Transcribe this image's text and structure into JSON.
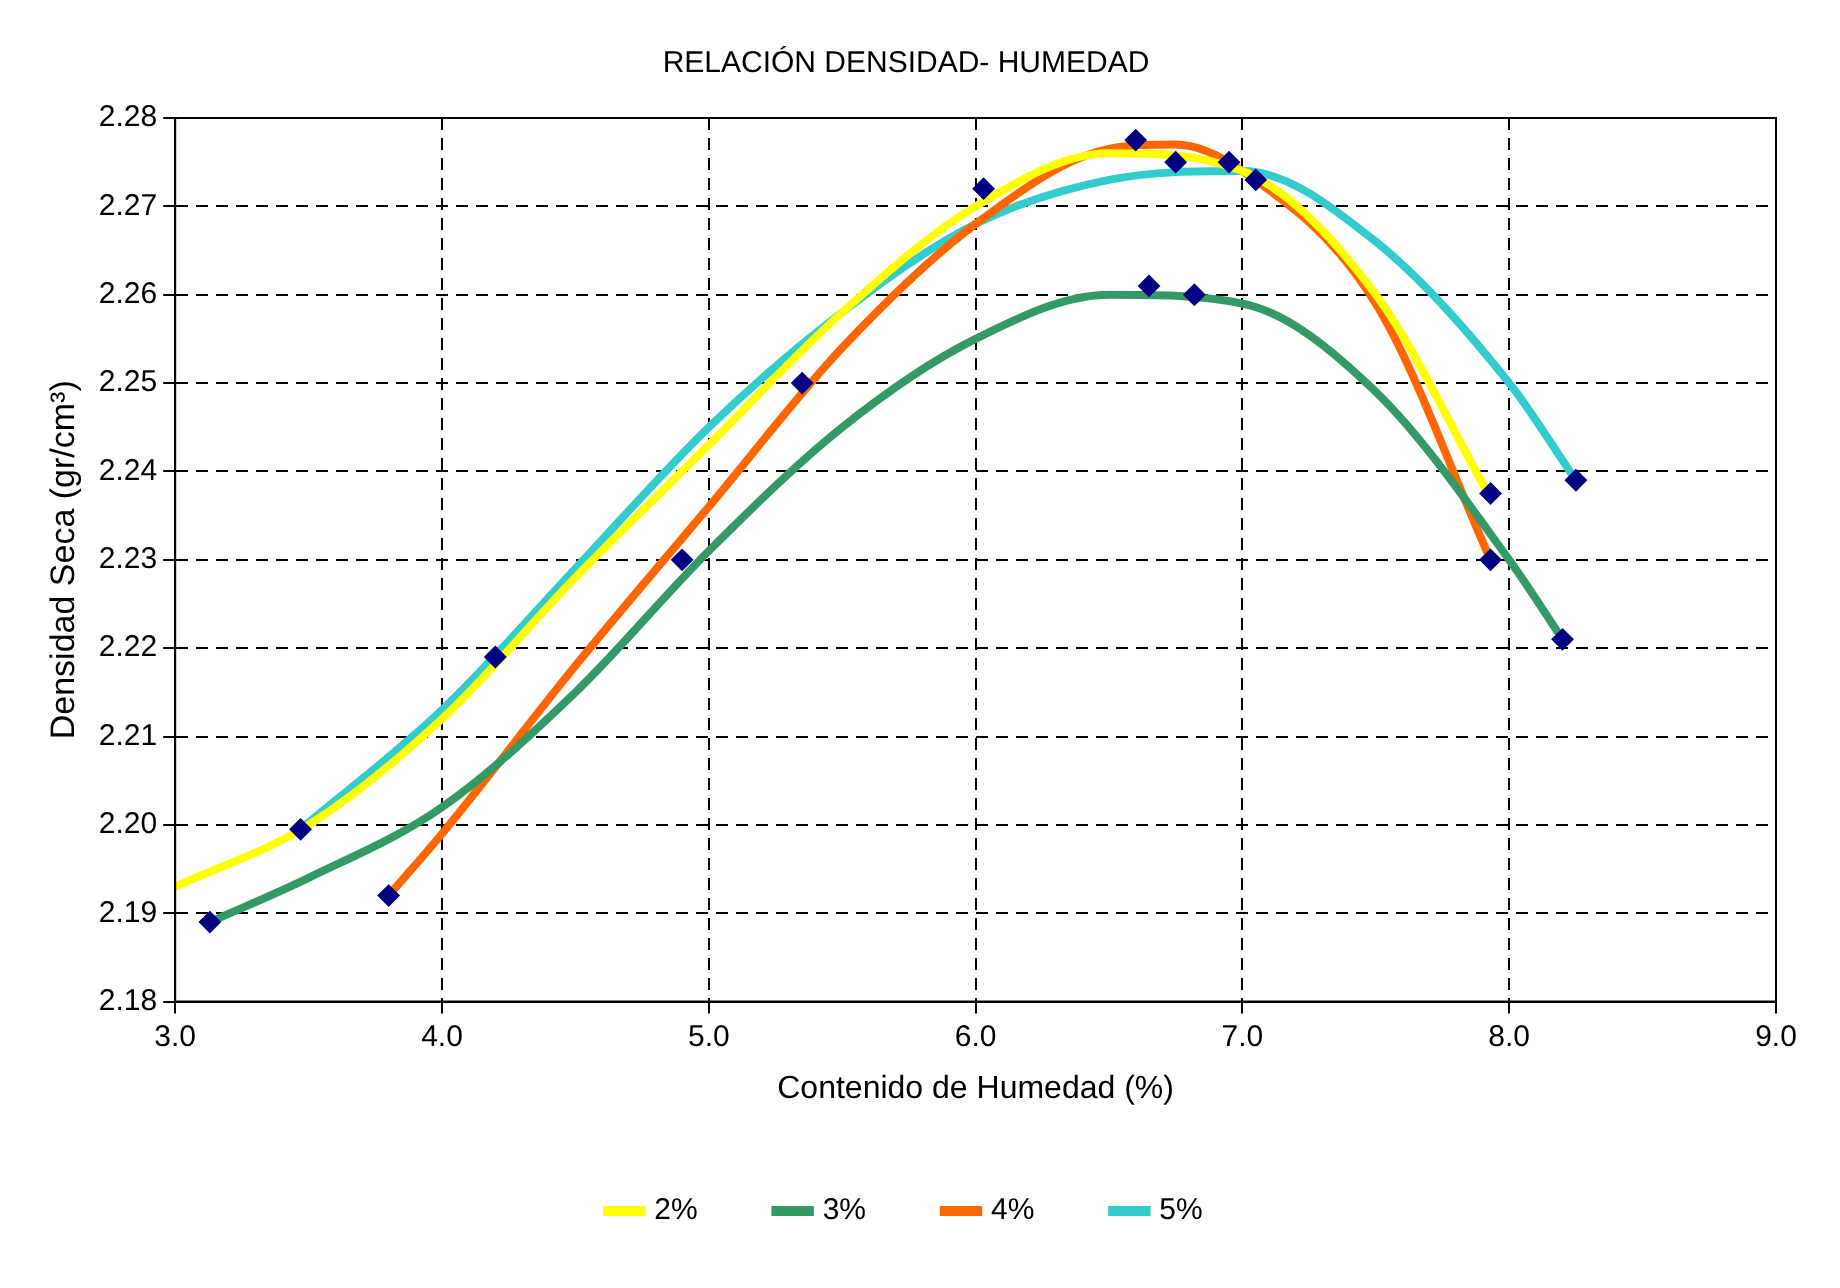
{
  "chart_data": {
    "type": "line",
    "title": "RELACIÓN DENSIDAD- HUMEDAD",
    "xlabel": "Contenido de Humedad (%)",
    "ylabel": "Densidad Seca (gr/cm³)",
    "xlim": [
      3.0,
      9.0
    ],
    "xticks": [
      {
        "value": 3,
        "label": "3.0"
      },
      {
        "value": 4,
        "label": "4.0"
      },
      {
        "value": 5,
        "label": "5.0"
      },
      {
        "value": 6,
        "label": "6.0"
      },
      {
        "value": 7,
        "label": "7.0"
      },
      {
        "value": 8,
        "label": "8.0"
      },
      {
        "value": 9,
        "label": "9.0"
      }
    ],
    "ylim": [
      2.18,
      2.28
    ],
    "yticks": [
      {
        "value": 2.18,
        "label": "2.18"
      },
      {
        "value": 2.19,
        "label": "2.19"
      },
      {
        "value": 2.2,
        "label": "2.20"
      },
      {
        "value": 2.21,
        "label": "2.21"
      },
      {
        "value": 2.22,
        "label": "2.22"
      },
      {
        "value": 2.23,
        "label": "2.23"
      },
      {
        "value": 2.24,
        "label": "2.24"
      },
      {
        "value": 2.25,
        "label": "2.25"
      },
      {
        "value": 2.26,
        "label": "2.26"
      },
      {
        "value": 2.27,
        "label": "2.27"
      },
      {
        "value": 2.28,
        "label": "2.28"
      }
    ],
    "grid": true,
    "legend": "bottom",
    "line_style": "solid",
    "series": [
      {
        "type": "scatter",
        "marker": "diamond",
        "color": "#000080",
        "x": [
          3.13,
          3.47,
          3.8,
          4.2,
          4.9,
          5.35,
          6.03,
          6.6,
          6.65,
          6.75,
          6.82,
          6.95,
          7.05,
          7.93,
          7.93,
          8.2,
          8.25
        ],
        "values": [
          2.189,
          2.1995,
          2.192,
          2.219,
          2.23,
          2.25,
          2.272,
          2.2775,
          2.261,
          2.275,
          2.26,
          2.275,
          2.273,
          2.2375,
          2.23,
          2.221,
          2.239
        ]
      },
      {
        "type": "line",
        "marker": "none",
        "name": "2%",
        "color": "#ffff00",
        "x": [
          3.0,
          3.5,
          4.0,
          4.5,
          5.0,
          5.5,
          6.0,
          6.5,
          7.0,
          7.5,
          7.93
        ],
        "values": [
          2.193,
          2.2,
          2.212,
          2.228,
          2.243,
          2.258,
          2.27,
          2.276,
          2.274,
          2.26,
          2.237
        ]
      },
      {
        "type": "line",
        "marker": "none",
        "name": "3%",
        "color": "#339966",
        "x": [
          3.13,
          3.5,
          4.0,
          4.5,
          5.0,
          5.5,
          6.0,
          6.5,
          7.0,
          7.5,
          8.0,
          8.2
        ],
        "values": [
          2.189,
          2.194,
          2.202,
          2.215,
          2.231,
          2.245,
          2.255,
          2.26,
          2.259,
          2.249,
          2.23,
          2.221
        ]
      },
      {
        "type": "line",
        "marker": "none",
        "name": "4%",
        "color": "#ff6600",
        "x": [
          3.8,
          4.0,
          4.5,
          5.0,
          5.5,
          6.0,
          6.5,
          6.75,
          7.0,
          7.5,
          7.93
        ],
        "values": [
          2.192,
          2.199,
          2.218,
          2.236,
          2.254,
          2.268,
          2.2765,
          2.277,
          2.274,
          2.259,
          2.23
        ]
      },
      {
        "type": "line",
        "marker": "none",
        "name": "5%",
        "color": "#33cccc",
        "x": [
          3.47,
          4.0,
          4.5,
          5.0,
          5.5,
          6.0,
          6.5,
          7.0,
          7.5,
          8.0,
          8.25
        ],
        "values": [
          2.1995,
          2.213,
          2.229,
          2.245,
          2.258,
          2.268,
          2.273,
          2.274,
          2.266,
          2.25,
          2.239
        ]
      }
    ]
  }
}
